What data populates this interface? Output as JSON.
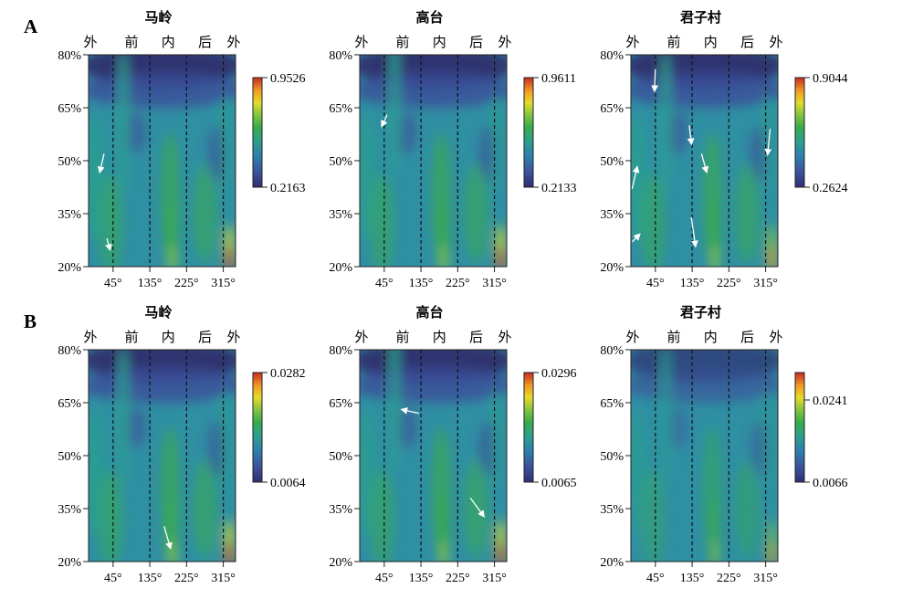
{
  "chart_data": [
    {
      "type": "heatmap",
      "row_label": "A",
      "panels": [
        {
          "title": "马岭",
          "colorbar": {
            "max_label": "0.9526",
            "min_label": "0.2163",
            "max": 0.9526,
            "min": 0.2163
          }
        },
        {
          "title": "高台",
          "colorbar": {
            "max_label": "0.9611",
            "min_label": "0.2133",
            "max": 0.9611,
            "min": 0.2133
          }
        },
        {
          "title": "君子村",
          "colorbar": {
            "max_label": "0.9044",
            "min_label": "0.2624",
            "max": 0.9044,
            "min": 0.2624
          }
        }
      ]
    },
    {
      "type": "heatmap",
      "row_label": "B",
      "panels": [
        {
          "title": "马岭",
          "colorbar": {
            "max_label": "0.0282",
            "min_label": "0.0064",
            "max": 0.0282,
            "min": 0.0064
          }
        },
        {
          "title": "高台",
          "colorbar": {
            "max_label": "0.0296",
            "min_label": "0.0065",
            "max": 0.0296,
            "min": 0.0065
          }
        },
        {
          "title": "君子村",
          "colorbar": {
            "max_label": "0.0241",
            "min_label": "0.0066",
            "max": 0.0241,
            "min": 0.0066,
            "max_label_at_fraction": 0.75
          }
        }
      ]
    }
  ],
  "axes": {
    "top_labels": [
      "外",
      "前",
      "内",
      "后",
      "外"
    ],
    "x_ticks": [
      "45°",
      "135°",
      "225°",
      "315°"
    ],
    "x_tick_values": [
      45,
      135,
      225,
      315
    ],
    "xlim": [
      -15,
      345
    ],
    "y_ticks": [
      "80%",
      "65%",
      "50%",
      "35%",
      "20%"
    ],
    "y_tick_values": [
      80,
      65,
      50,
      35,
      20
    ],
    "ylim": [
      20,
      80
    ],
    "dashed_lines_at": [
      45,
      135,
      225,
      315
    ]
  },
  "colormap": [
    "#2e2f6e",
    "#3b4d98",
    "#2f7fae",
    "#2aa08d",
    "#3aad4a",
    "#8cc63f",
    "#e3dc2a",
    "#f29a26",
    "#d9332a",
    "#b01c1c"
  ],
  "arrows": {
    "A": [
      [
        [
          23,
          52,
          13,
          47
        ],
        [
          30,
          28,
          37,
          25
        ]
      ],
      [
        [
          52,
          63,
          40,
          60
        ]
      ],
      [
        [
          45,
          76,
          43,
          70
        ],
        [
          128,
          60,
          133,
          55
        ],
        [
          158,
          52,
          170,
          47
        ],
        [
          326,
          59,
          320,
          52
        ],
        [
          -12,
          42,
          0,
          48
        ],
        [
          -12,
          27,
          5,
          29
        ],
        [
          133,
          34,
          143,
          26
        ]
      ]
    ],
    "B": [
      [
        [
          170,
          30,
          185,
          24
        ]
      ],
      [
        [
          130,
          62,
          90,
          63
        ],
        [
          256,
          38,
          288,
          33
        ]
      ],
      []
    ]
  }
}
